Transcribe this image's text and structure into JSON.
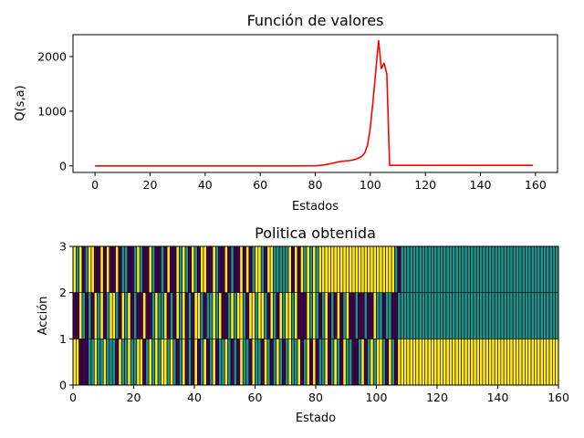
{
  "chart_data": [
    {
      "type": "line",
      "title": "Función de valores",
      "xlabel": "Estados",
      "ylabel": "Q(s,a)",
      "xlim": [
        -8,
        168
      ],
      "ylim": [
        -120,
        2400
      ],
      "xticks": [
        0,
        20,
        40,
        60,
        80,
        100,
        120,
        140,
        160
      ],
      "yticks": [
        0,
        1000,
        2000
      ],
      "grid": false,
      "color": "#ff0000",
      "x": [
        0,
        10,
        20,
        30,
        40,
        50,
        60,
        70,
        80,
        82,
        84,
        86,
        88,
        90,
        92,
        94,
        96,
        97,
        98,
        99,
        100,
        101,
        102,
        103,
        104,
        105,
        106,
        107,
        108,
        120,
        140,
        159
      ],
      "y": [
        0,
        0,
        0,
        0,
        0,
        0,
        0,
        0,
        2,
        10,
        25,
        45,
        70,
        85,
        95,
        110,
        150,
        180,
        240,
        380,
        700,
        1200,
        1750,
        2290,
        1780,
        1880,
        1680,
        10,
        10,
        10,
        10,
        10
      ]
    },
    {
      "type": "heatmap",
      "title": "Politica obtenida",
      "xlabel": "Estado",
      "ylabel": "Acción",
      "xlim": [
        0,
        160
      ],
      "ylim": [
        0,
        3
      ],
      "xticks": [
        0,
        20,
        40,
        60,
        80,
        100,
        120,
        140,
        160
      ],
      "yticks": [
        0,
        1,
        2,
        3
      ],
      "colormap": [
        "#440154",
        "#21918c",
        "#fde725"
      ],
      "values": [
        [
          2,
          2,
          0,
          0,
          0,
          1,
          1,
          2,
          1,
          1,
          2,
          1,
          1,
          1,
          0,
          2,
          1,
          1,
          2,
          1,
          1,
          2,
          2,
          0,
          1,
          2,
          1,
          2,
          1,
          2,
          2,
          1,
          2,
          1,
          0,
          1,
          2,
          0,
          1,
          0,
          2,
          0,
          1,
          2,
          0,
          1,
          2,
          0,
          1,
          1,
          2,
          1,
          0,
          1,
          0,
          2,
          1,
          1,
          0,
          2,
          1,
          1,
          0,
          2,
          1,
          0,
          1,
          2,
          1,
          0,
          1,
          2,
          1,
          1,
          2,
          0,
          1,
          2,
          0,
          2,
          0,
          1,
          1,
          2,
          0,
          1,
          2,
          1,
          0,
          2,
          1,
          1,
          0,
          0,
          1,
          2,
          0,
          1,
          2,
          1,
          2,
          2,
          1,
          0,
          2,
          1,
          0,
          2,
          2,
          2,
          2,
          2,
          2,
          2,
          2,
          2,
          2,
          2,
          2,
          2,
          2,
          2,
          2,
          2,
          2,
          2,
          2,
          2,
          2,
          2,
          2,
          2,
          2,
          2,
          2,
          2,
          2,
          2,
          2,
          2,
          2,
          2,
          2,
          2,
          2,
          2,
          2,
          2,
          2,
          2,
          2,
          2,
          2,
          2,
          2,
          2,
          2,
          2,
          2,
          2
        ],
        [
          0,
          0,
          2,
          1,
          0,
          1,
          0,
          2,
          1,
          2,
          0,
          1,
          2,
          2,
          1,
          0,
          2,
          1,
          2,
          0,
          1,
          0,
          0,
          2,
          0,
          0,
          1,
          2,
          1,
          1,
          2,
          0,
          1,
          0,
          2,
          1,
          2,
          0,
          1,
          0,
          2,
          2,
          1,
          0,
          1,
          1,
          2,
          1,
          2,
          0,
          0,
          1,
          2,
          1,
          2,
          2,
          1,
          0,
          2,
          2,
          1,
          2,
          2,
          1,
          0,
          2,
          1,
          0,
          2,
          1,
          2,
          2,
          1,
          2,
          0,
          0,
          0,
          2,
          1,
          2,
          1,
          0,
          1,
          2,
          0,
          1,
          0,
          2,
          0,
          1,
          2,
          0,
          0,
          1,
          0,
          0,
          1,
          0,
          0,
          2,
          1,
          1,
          0,
          1,
          1,
          0,
          0,
          1,
          1,
          1,
          1,
          1,
          1,
          1,
          1,
          1,
          1,
          1,
          1,
          1,
          1,
          1,
          1,
          1,
          1,
          1,
          1,
          1,
          1,
          1,
          1,
          1,
          1,
          1,
          1,
          1,
          1,
          1,
          1,
          1,
          1,
          1,
          1,
          1,
          1,
          1,
          1,
          1,
          1,
          1,
          1,
          1,
          1,
          1,
          1,
          1,
          1,
          1,
          1,
          1
        ],
        [
          2,
          1,
          2,
          0,
          1,
          2,
          2,
          0,
          0,
          2,
          0,
          2,
          0,
          0,
          2,
          0,
          1,
          1,
          0,
          0,
          1,
          2,
          1,
          0,
          0,
          2,
          1,
          0,
          0,
          1,
          0,
          2,
          0,
          0,
          2,
          1,
          2,
          1,
          0,
          2,
          1,
          0,
          2,
          2,
          0,
          0,
          2,
          1,
          0,
          0,
          2,
          0,
          1,
          0,
          0,
          2,
          0,
          2,
          0,
          1,
          2,
          2,
          1,
          0,
          2,
          2,
          1,
          1,
          1,
          1,
          1,
          2,
          0,
          2,
          0,
          2,
          1,
          2,
          1,
          2,
          1,
          2,
          2,
          2,
          2,
          2,
          2,
          2,
          2,
          2,
          2,
          2,
          2,
          2,
          2,
          2,
          2,
          2,
          2,
          2,
          2,
          2,
          2,
          2,
          2,
          2,
          1,
          0,
          1,
          1,
          1,
          1,
          1,
          1,
          1,
          1,
          1,
          1,
          1,
          1,
          1,
          1,
          1,
          1,
          1,
          1,
          1,
          1,
          1,
          1,
          1,
          1,
          1,
          1,
          1,
          1,
          1,
          1,
          1,
          1,
          1,
          1,
          1,
          1,
          1,
          1,
          1,
          1,
          1,
          1,
          1,
          1,
          1,
          1,
          1,
          1,
          1,
          1,
          1,
          1
        ]
      ]
    }
  ]
}
